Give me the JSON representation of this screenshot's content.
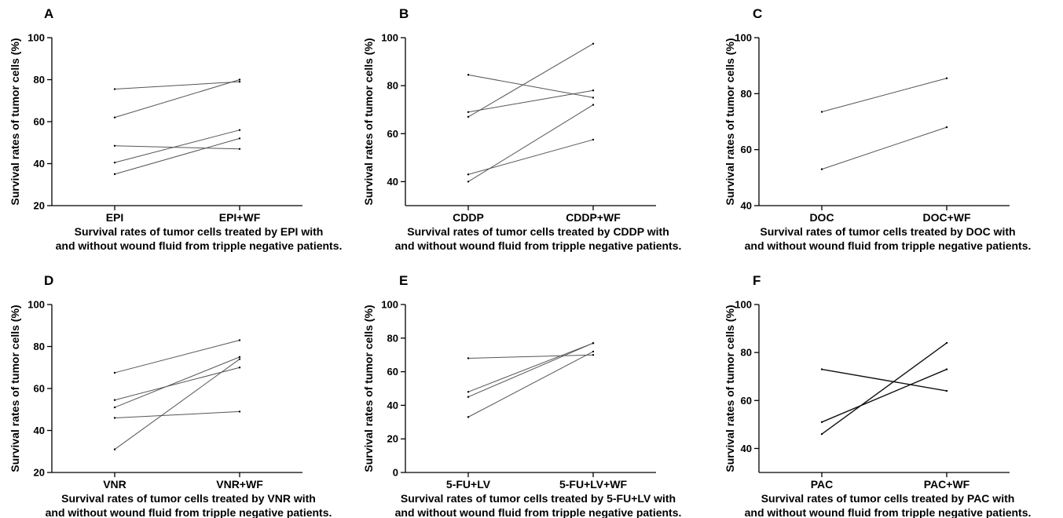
{
  "chart_data": [
    {
      "type": "line",
      "panel_label": "A",
      "ylabel": "Survival rates of tumor cells (%)",
      "ylim": [
        20,
        100
      ],
      "yticks": [
        "20",
        "40",
        "60",
        "80",
        "100"
      ],
      "categories": [
        "EPI",
        "EPI+WF"
      ],
      "series": [
        {
          "values": [
            75.5,
            79.0
          ]
        },
        {
          "values": [
            62.0,
            80.0
          ]
        },
        {
          "values": [
            48.5,
            47.0
          ]
        },
        {
          "values": [
            40.5,
            56.0
          ]
        },
        {
          "values": [
            35.0,
            52.0
          ]
        }
      ],
      "caption": [
        "Survival rates of tumor cells treated by EPI with",
        "and without wound fluid from tripple negative patients."
      ],
      "line_color": "#555555"
    },
    {
      "type": "line",
      "panel_label": "B",
      "ylabel": "Survival rates of tumor cells (%)",
      "ylim": [
        30,
        100
      ],
      "yticks": [
        "40",
        "60",
        "80",
        "100"
      ],
      "categories": [
        "CDDP",
        "CDDP+WF"
      ],
      "series": [
        {
          "values": [
            84.5,
            75.0
          ]
        },
        {
          "values": [
            69.0,
            78.0
          ]
        },
        {
          "values": [
            67.0,
            97.5
          ]
        },
        {
          "values": [
            43.0,
            57.5
          ]
        },
        {
          "values": [
            40.0,
            72.0
          ]
        }
      ],
      "caption": [
        "Survival rates of tumor cells treated by CDDP with",
        "and without wound fluid from tripple negative patients."
      ],
      "line_color": "#555555"
    },
    {
      "type": "line",
      "panel_label": "C",
      "ylabel": "Survival rates of tumor cells (%)",
      "ylim": [
        40,
        100
      ],
      "yticks": [
        "40",
        "60",
        "80",
        "100"
      ],
      "categories": [
        "DOC",
        "DOC+WF"
      ],
      "series": [
        {
          "values": [
            73.5,
            85.5
          ]
        },
        {
          "values": [
            53.0,
            68.0
          ]
        }
      ],
      "caption": [
        "Survival rates of tumor cells treated by DOC with",
        "and without wound fluid from tripple negative patients."
      ],
      "line_color": "#555555"
    },
    {
      "type": "line",
      "panel_label": "D",
      "ylabel": "Survival rates of tumor cells (%)",
      "ylim": [
        20,
        100
      ],
      "yticks": [
        "20",
        "40",
        "60",
        "80",
        "100"
      ],
      "categories": [
        "VNR",
        "VNR+WF"
      ],
      "series": [
        {
          "values": [
            67.5,
            83.0
          ]
        },
        {
          "values": [
            54.5,
            70.0
          ]
        },
        {
          "values": [
            51.0,
            75.0
          ]
        },
        {
          "values": [
            46.0,
            49.0
          ]
        },
        {
          "values": [
            31.0,
            74.0
          ]
        }
      ],
      "caption": [
        "Survival rates of tumor cells treated by VNR with",
        "and without wound fluid from tripple negative patients."
      ],
      "line_color": "#555555"
    },
    {
      "type": "line",
      "panel_label": "E",
      "ylabel": "Survival rates of tumor cells (%)",
      "ylim": [
        0,
        100
      ],
      "yticks": [
        "0",
        "20",
        "40",
        "60",
        "80",
        "100"
      ],
      "categories": [
        "5-FU+LV",
        "5-FU+LV+WF"
      ],
      "series": [
        {
          "values": [
            68.0,
            70.0
          ]
        },
        {
          "values": [
            48.0,
            77.0
          ]
        },
        {
          "values": [
            45.0,
            77.0
          ]
        },
        {
          "values": [
            33.0,
            72.0
          ]
        }
      ],
      "caption": [
        "Survival rates of tumor cells treated by 5-FU+LV with",
        "and without wound fluid from tripple negative patients."
      ],
      "line_color": "#555555"
    },
    {
      "type": "line",
      "panel_label": "F",
      "ylabel": "Survival rates of tumor cells (%)",
      "ylim": [
        30,
        100
      ],
      "yticks": [
        "40",
        "60",
        "80",
        "100"
      ],
      "categories": [
        "PAC",
        "PAC+WF"
      ],
      "series": [
        {
          "values": [
            73.0,
            64.0
          ]
        },
        {
          "values": [
            51.0,
            73.0
          ]
        },
        {
          "values": [
            46.0,
            84.0
          ]
        }
      ],
      "caption": [
        "Survival rates of tumor cells treated by PAC with",
        "and without wound fluid from tripple negative patients."
      ],
      "line_color": "#111111"
    }
  ]
}
